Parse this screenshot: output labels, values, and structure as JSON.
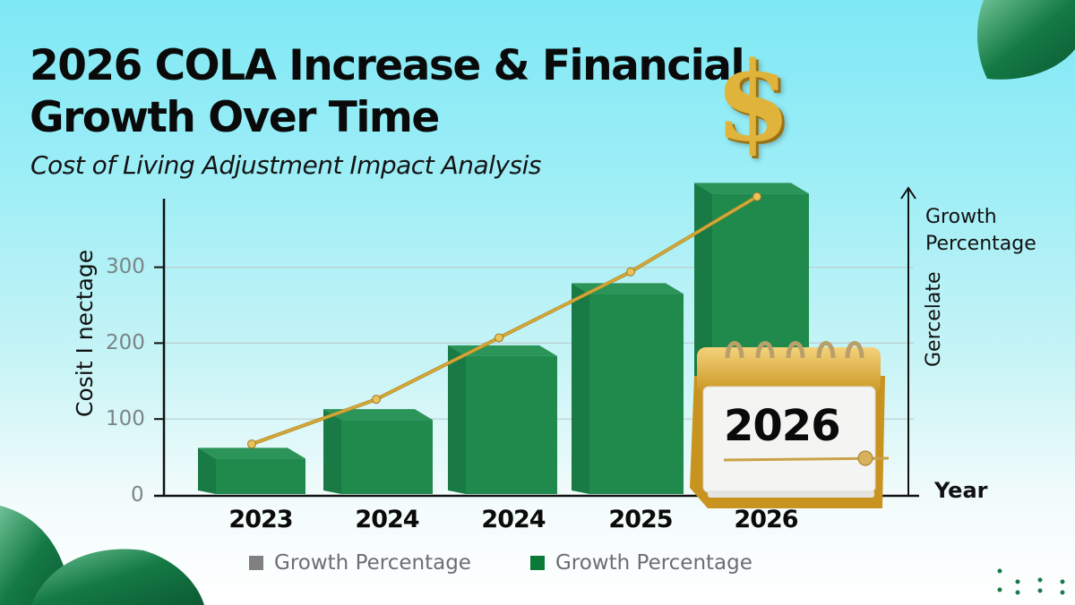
{
  "header": {
    "title": "2026 COLA Increase & Financial\nGrowth Over Time",
    "subtitle": "Cost of Living Adjustment Impact Analysis"
  },
  "axes": {
    "y_label": "Cosit I nectage",
    "y_ticks": [
      "0",
      "100",
      "200",
      "300"
    ],
    "x_ticks": [
      "2023",
      "2024",
      "2024",
      "2025",
      "2026"
    ],
    "right_title": "Growth\nPercentage",
    "right_rotated_label": "Gercelate",
    "right_bottom_label": "Year"
  },
  "legend": [
    {
      "label": "Growth Percentage",
      "color": "#808080"
    },
    {
      "label": "Growth Percentage",
      "color": "#0a7a36"
    }
  ],
  "decorations": {
    "dollar_icon": "$",
    "calendar_year": "2026"
  },
  "colors": {
    "bar": "#1f8a4c",
    "bar_dark": "#14693a",
    "line": "#d4a93a",
    "background_top": "#7ee8f5"
  },
  "chart_data": {
    "type": "bar",
    "title": "2026 COLA Increase & Financial Growth Over Time",
    "subtitle": "Cost of Living Adjustment Impact Analysis",
    "xlabel": "Year",
    "ylabel": "Cosit I nectage",
    "categories": [
      "2023",
      "2024",
      "2024",
      "2025",
      "2026"
    ],
    "ylim": [
      0,
      350
    ],
    "yticks": [
      0,
      100,
      200,
      300
    ],
    "grid": true,
    "legend_position": "bottom",
    "series": [
      {
        "name": "Growth Percentage",
        "kind": "bar",
        "values": [
          55,
          106,
          190,
          272,
          404
        ]
      },
      {
        "name": "Growth Percentage",
        "kind": "line",
        "values": [
          67,
          126,
          207,
          294,
          393
        ]
      }
    ]
  }
}
